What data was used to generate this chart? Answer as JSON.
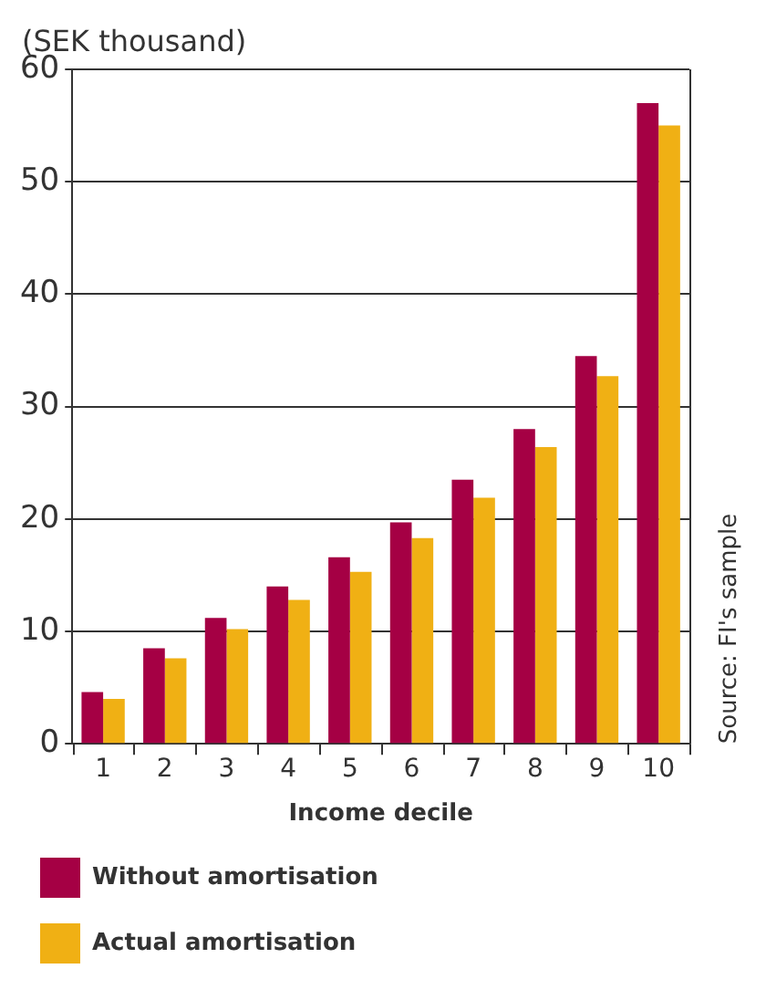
{
  "chart_data": {
    "type": "bar",
    "ylabel": "(SEK thousand)",
    "xlabel": "Income decile",
    "categories": [
      "1",
      "2",
      "3",
      "4",
      "5",
      "6",
      "7",
      "8",
      "9",
      "10"
    ],
    "series": [
      {
        "name": "Without amortisation",
        "color": "#a50044",
        "values": [
          4.6,
          8.5,
          11.2,
          14.0,
          16.6,
          19.7,
          23.5,
          28.0,
          34.5,
          57.0
        ]
      },
      {
        "name": "Actual amortisation",
        "color": "#f0b014",
        "values": [
          4.0,
          7.6,
          10.2,
          12.8,
          15.3,
          18.3,
          21.9,
          26.4,
          32.7,
          55.0
        ]
      }
    ],
    "ylim": [
      0,
      60
    ],
    "yticks": [
      0,
      10,
      20,
      30,
      40,
      50,
      60
    ],
    "grid": "y",
    "legend": "bottom",
    "annotations": [
      "Source: FI's sample"
    ]
  }
}
